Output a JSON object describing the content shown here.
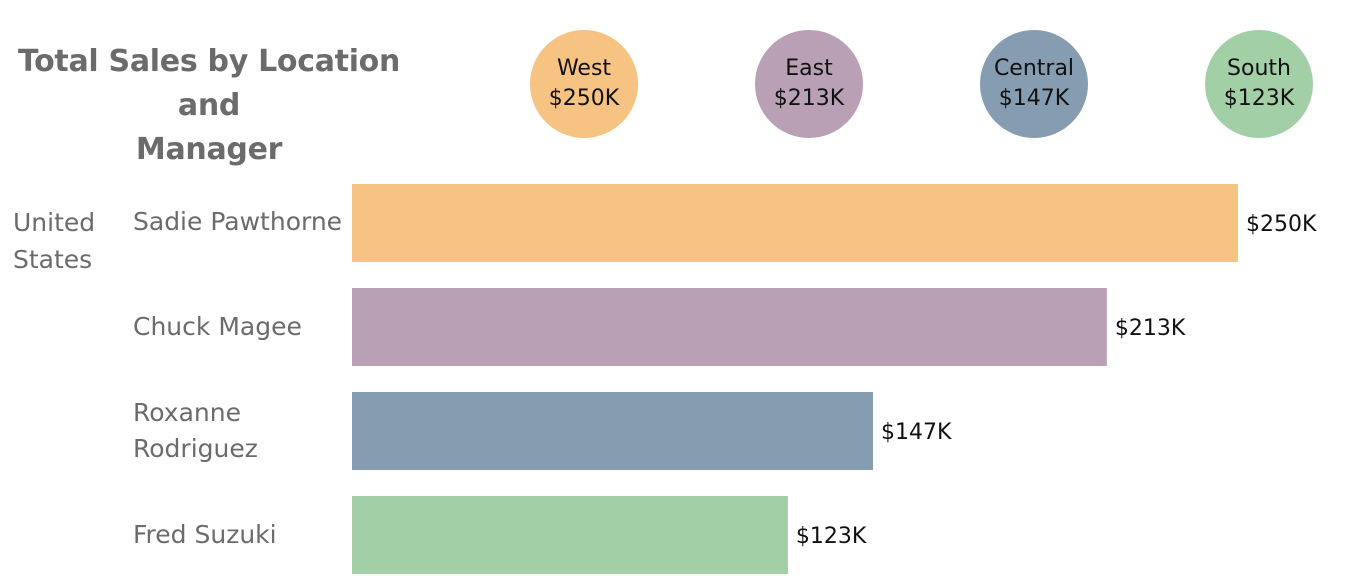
{
  "title": [
    "Total Sales by Location and",
    "Manager"
  ],
  "regions": [
    {
      "name": "West",
      "value_label": "$250K",
      "color": "#F6C382"
    },
    {
      "name": "East",
      "value_label": "$213K",
      "color": "#B9A0B4"
    },
    {
      "name": "Central",
      "value_label": "$147K",
      "color": "#869CB0"
    },
    {
      "name": "South",
      "value_label": "$123K",
      "color": "#A3CFA6"
    }
  ],
  "country": [
    "United",
    "States"
  ],
  "managers": [
    {
      "lines": [
        "Sadie Pawthorne"
      ]
    },
    {
      "lines": [
        "Chuck Magee"
      ]
    },
    {
      "lines": [
        "Roxanne",
        "Rodriguez"
      ]
    },
    {
      "lines": [
        "Fred Suzuki"
      ]
    }
  ],
  "chart_data": {
    "type": "bar",
    "orientation": "horizontal",
    "title": "Total Sales by Location and Manager",
    "categories": [
      "Sadie Pawthorne",
      "Chuck Magee",
      "Roxanne Rodriguez",
      "Fred Suzuki"
    ],
    "values": [
      250,
      213,
      147,
      123
    ],
    "value_labels": [
      "$250K",
      "$213K",
      "$147K",
      "$123K"
    ],
    "colors": [
      "#F6C382",
      "#B9A0B4",
      "#869CB0",
      "#A3CFA6"
    ],
    "grid": false,
    "xlim": [
      0,
      250
    ]
  }
}
